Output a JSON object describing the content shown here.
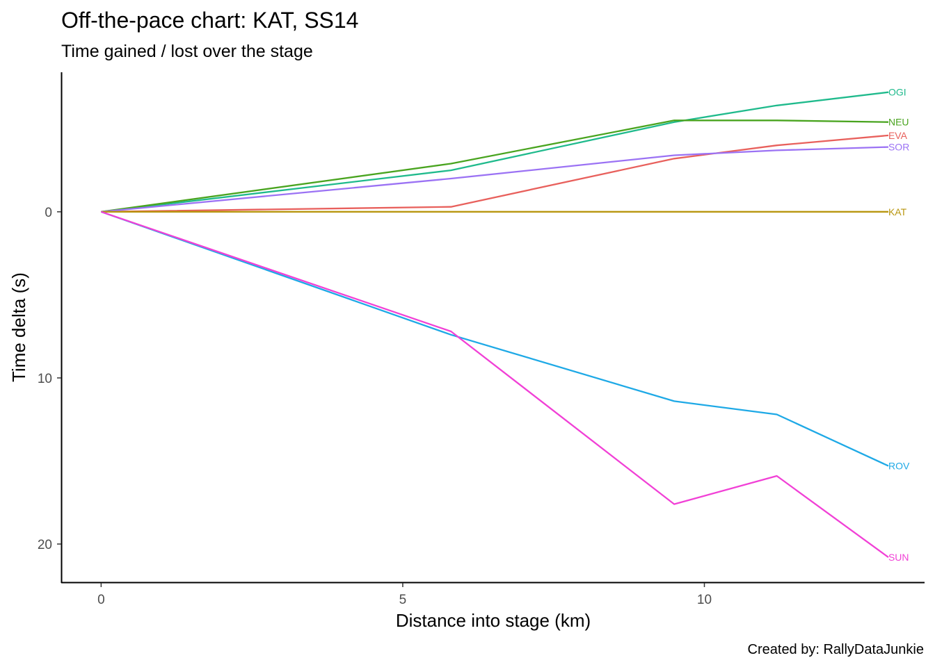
{
  "chart_data": {
    "type": "line",
    "title": "Off-the-pace chart: KAT, SS14",
    "subtitle": "Time gained / lost over the stage",
    "xlabel": "Distance into stage (km)",
    "ylabel": "Time delta (s)",
    "caption": "Created by: RallyDataJunkie",
    "xlim": [
      -0.65,
      13.65
    ],
    "ylim": [
      -8.4,
      22.3
    ],
    "y_reversed": true,
    "x_ticks": [
      0,
      5,
      10
    ],
    "y_ticks": [
      0,
      10,
      20
    ],
    "grid": false,
    "legend": "none (labels at line ends)",
    "x": [
      0,
      5.8,
      9.5,
      11.2,
      13.05
    ],
    "series": [
      {
        "name": "OGI",
        "color": "#1fba8c",
        "values": [
          0,
          -2.5,
          -5.4,
          -6.4,
          -7.2
        ]
      },
      {
        "name": "NEU",
        "color": "#49a41f",
        "values": [
          0,
          -2.9,
          -5.5,
          -5.5,
          -5.4
        ]
      },
      {
        "name": "EVA",
        "color": "#e8605c",
        "values": [
          0,
          -0.3,
          -3.2,
          -4.0,
          -4.6
        ]
      },
      {
        "name": "SOR",
        "color": "#9b72f4",
        "values": [
          0,
          -2.0,
          -3.4,
          -3.7,
          -3.9
        ]
      },
      {
        "name": "KAT",
        "color": "#b8960f",
        "values": [
          0,
          0,
          0,
          0,
          0
        ]
      },
      {
        "name": "ROV",
        "color": "#1ea9e6",
        "values": [
          0,
          7.4,
          11.4,
          12.2,
          15.3
        ]
      },
      {
        "name": "SUN",
        "color": "#f140d6",
        "values": [
          0,
          7.2,
          17.6,
          15.9,
          20.8
        ]
      }
    ]
  }
}
